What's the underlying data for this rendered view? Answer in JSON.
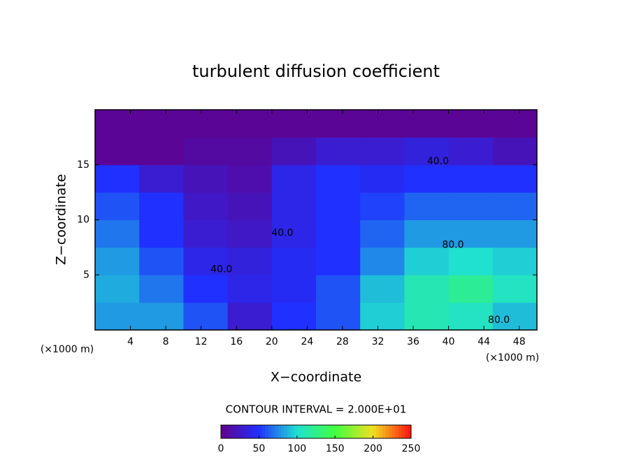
{
  "chart_data": {
    "type": "contour",
    "title": "turbulent diffusion coefficient",
    "x_label": "X−coordinate",
    "y_label": "Z−coordinate",
    "x_unit_left": "(×1000 m)",
    "x_unit_right": "(×1000 m)",
    "contour_interval": "CONTOUR INTERVAL = 2.000E+01",
    "xlim": [
      0,
      50
    ],
    "ylim": [
      0,
      20
    ],
    "xticks": [
      4,
      8,
      12,
      16,
      20,
      24,
      28,
      32,
      36,
      40,
      44,
      48
    ],
    "yticks": [
      5,
      10,
      15
    ],
    "x_edges": [
      0,
      5,
      10,
      15,
      20,
      25,
      30,
      35,
      40,
      45,
      50
    ],
    "y_edges": [
      0,
      2.5,
      5,
      7.5,
      10,
      12.5,
      15,
      17.5,
      20
    ],
    "z": [
      [
        80,
        80,
        60,
        30,
        50,
        60,
        95,
        110,
        105,
        90
      ],
      [
        85,
        70,
        50,
        40,
        45,
        60,
        90,
        110,
        120,
        105
      ],
      [
        80,
        60,
        40,
        35,
        45,
        50,
        75,
        95,
        100,
        95
      ],
      [
        70,
        50,
        30,
        25,
        40,
        50,
        65,
        80,
        80,
        80
      ],
      [
        60,
        50,
        25,
        20,
        40,
        50,
        55,
        65,
        65,
        65
      ],
      [
        50,
        30,
        20,
        15,
        40,
        50,
        45,
        50,
        50,
        50
      ],
      [
        5,
        5,
        10,
        10,
        20,
        30,
        30,
        35,
        30,
        20
      ],
      [
        5,
        5,
        5,
        5,
        5,
        5,
        5,
        5,
        5,
        5
      ]
    ],
    "contour_labels": [
      {
        "text": "40.0",
        "x": 38.8,
        "y": 15.3
      },
      {
        "text": "80.0",
        "x": 40.5,
        "y": 7.7
      },
      {
        "text": "80.0",
        "x": 45.7,
        "y": 0.9
      },
      {
        "text": "40.0",
        "x": 21.2,
        "y": 8.8
      },
      {
        "text": "40.0",
        "x": 14.3,
        "y": 5.5
      }
    ],
    "zlim": [
      0,
      250
    ],
    "colorbar_ticks": [
      0,
      50,
      100,
      150,
      200,
      250
    ],
    "colormap": [
      "#60008a",
      "#2030ff",
      "#20e0d0",
      "#40ff40",
      "#f0e020",
      "#ff1010"
    ]
  }
}
